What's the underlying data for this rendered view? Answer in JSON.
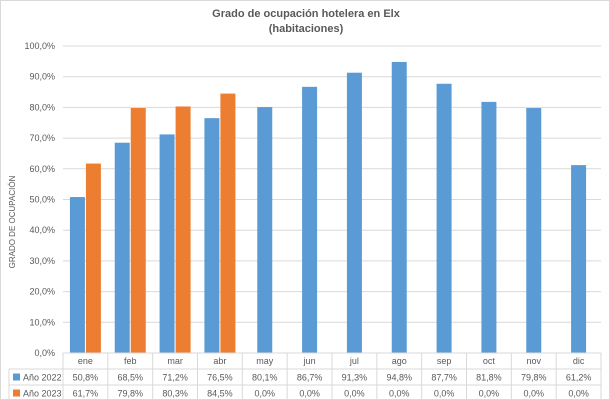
{
  "chart_data": {
    "type": "bar",
    "title": "Grado de ocupación hotelera en Elx",
    "subtitle": "(habitaciones)",
    "ylabel": "GRADO DE OCUPACIÓN",
    "xlabel": "",
    "ylim": [
      0,
      100
    ],
    "y_ticks": [
      "0,0%",
      "10,0%",
      "20,0%",
      "30,0%",
      "40,0%",
      "50,0%",
      "60,0%",
      "70,0%",
      "80,0%",
      "90,0%",
      "100,0%"
    ],
    "categories": [
      "ene",
      "feb",
      "mar",
      "abr",
      "may",
      "jun",
      "jul",
      "ago",
      "sep",
      "oct",
      "nov",
      "dic"
    ],
    "grid": true,
    "legend": "data-table",
    "series": [
      {
        "name": "Año 2022",
        "color": "#5b9bd5",
        "values": [
          50.8,
          68.5,
          71.2,
          76.5,
          80.1,
          86.7,
          91.3,
          94.8,
          87.7,
          81.8,
          79.8,
          61.2
        ],
        "labels": [
          "50,8%",
          "68,5%",
          "71,2%",
          "76,5%",
          "80,1%",
          "86,7%",
          "91,3%",
          "94,8%",
          "87,7%",
          "81,8%",
          "79,8%",
          "61,2%"
        ]
      },
      {
        "name": "Año 2023",
        "color": "#ed7d31",
        "values": [
          61.7,
          79.8,
          80.3,
          84.5,
          0,
          0,
          0,
          0,
          0,
          0,
          0,
          0
        ],
        "labels": [
          "61,7%",
          "79,8%",
          "80,3%",
          "84,5%",
          "0,0%",
          "0,0%",
          "0,0%",
          "0,0%",
          "0,0%",
          "0,0%",
          "0,0%",
          "0,0%"
        ]
      }
    ]
  }
}
